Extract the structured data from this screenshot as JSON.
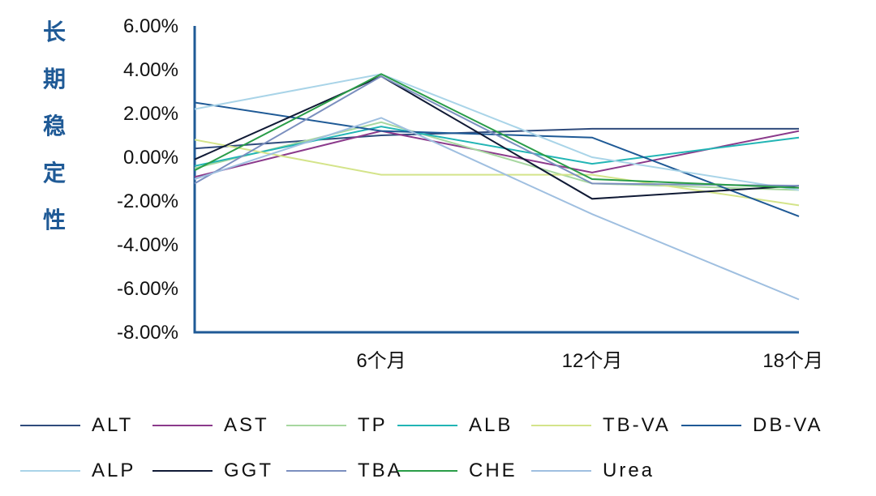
{
  "chart_data": {
    "type": "line",
    "title": "",
    "ylabel": "长期稳定性",
    "xlabel": "",
    "ylim": [
      -8,
      6
    ],
    "yticks": [
      {
        "value": 6,
        "label": "6.00%"
      },
      {
        "value": 4,
        "label": "4.00%"
      },
      {
        "value": 2,
        "label": "2.00%"
      },
      {
        "value": 0,
        "label": "0.00%"
      },
      {
        "value": -2,
        "label": "-2.00%"
      },
      {
        "value": -4,
        "label": "-4.00%"
      },
      {
        "value": -6,
        "label": "-6.00%"
      },
      {
        "value": -8,
        "label": "-8.00%"
      }
    ],
    "categories": [
      "",
      "6个月",
      "12个月",
      "18个月"
    ],
    "grid": false,
    "legend_position": "bottom",
    "series": [
      {
        "name": "ALT",
        "color": "#2f4b7c",
        "values": [
          0.4,
          1.0,
          1.3,
          1.3
        ]
      },
      {
        "name": "AST",
        "color": "#8b3a8b",
        "values": [
          -0.9,
          1.2,
          -0.7,
          1.2
        ]
      },
      {
        "name": "TP",
        "color": "#a7d7a0",
        "values": [
          -0.5,
          1.6,
          -1.2,
          -1.5
        ]
      },
      {
        "name": "ALB",
        "color": "#22b5b5",
        "values": [
          -0.4,
          1.4,
          -0.3,
          0.9
        ]
      },
      {
        "name": "TB-VA",
        "color": "#d4e48a",
        "values": [
          0.8,
          -0.8,
          -0.8,
          -2.2
        ]
      },
      {
        "name": "DB-VA",
        "color": "#1f5a96",
        "values": [
          2.5,
          1.2,
          0.9,
          -2.7
        ]
      },
      {
        "name": "ALP",
        "color": "#a9d4e8",
        "values": [
          2.2,
          3.8,
          0.0,
          -1.5
        ]
      },
      {
        "name": "GGT",
        "color": "#101a35",
        "values": [
          -0.1,
          3.7,
          -1.9,
          -1.3
        ]
      },
      {
        "name": "TBA",
        "color": "#7b8fbf",
        "values": [
          -1.2,
          3.7,
          -1.2,
          -1.3
        ]
      },
      {
        "name": "CHE",
        "color": "#2a9d48",
        "values": [
          -0.6,
          3.8,
          -1.0,
          -1.4
        ]
      },
      {
        "name": "Urea",
        "color": "#9fbfe0",
        "values": [
          -1.0,
          1.8,
          -2.6,
          -6.5
        ]
      }
    ]
  }
}
